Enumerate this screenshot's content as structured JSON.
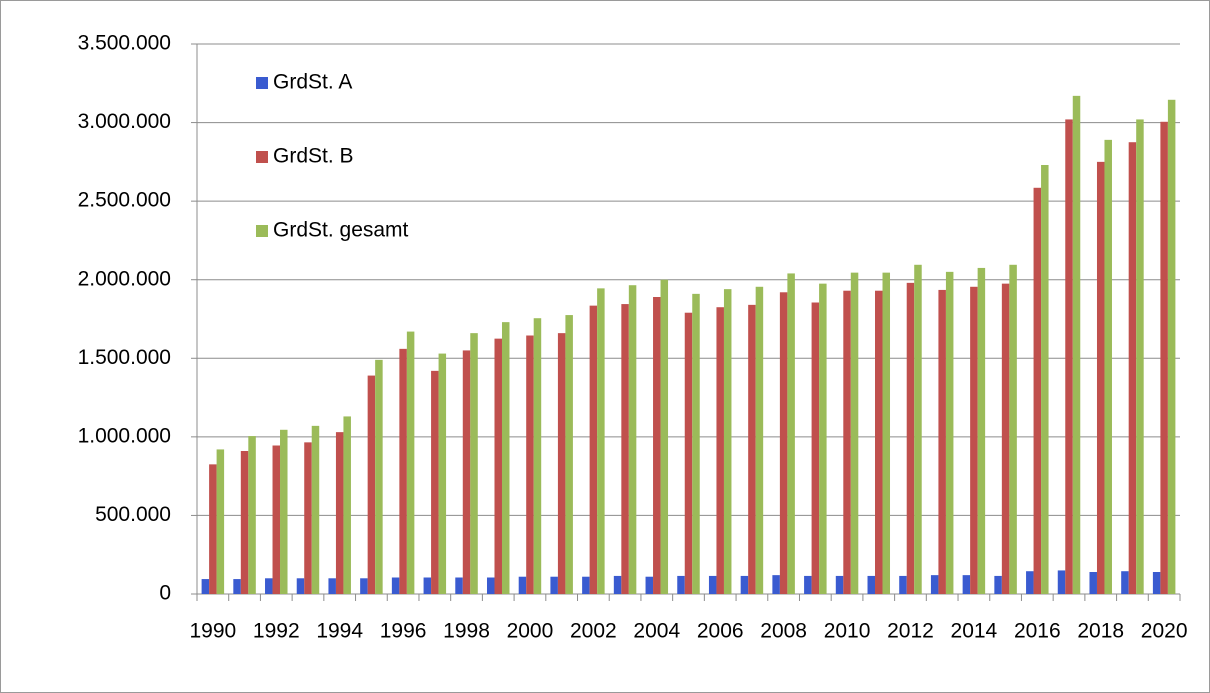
{
  "chart_data": {
    "type": "bar",
    "categories": [
      "1990",
      null,
      "1992",
      null,
      "1994",
      null,
      "1996",
      null,
      "1998",
      null,
      "2000",
      null,
      "2002",
      null,
      "2004",
      null,
      "2006",
      null,
      "2008",
      null,
      "2010",
      null,
      "2012",
      null,
      "2014",
      null,
      "2016",
      null,
      "2018",
      null,
      "2020"
    ],
    "series": [
      {
        "name": "GrdSt. A",
        "color": "#3a5bd0",
        "values": [
          95000,
          95000,
          100000,
          100000,
          100000,
          100000,
          105000,
          105000,
          105000,
          105000,
          110000,
          110000,
          110000,
          115000,
          110000,
          115000,
          115000,
          115000,
          120000,
          115000,
          115000,
          115000,
          115000,
          120000,
          120000,
          115000,
          145000,
          150000,
          140000,
          145000,
          140000
        ]
      },
      {
        "name": "GrdSt. B",
        "color": "#c0504d",
        "values": [
          825000,
          910000,
          945000,
          965000,
          1030000,
          1390000,
          1560000,
          1420000,
          1550000,
          1625000,
          1645000,
          1660000,
          1835000,
          1845000,
          1890000,
          1790000,
          1825000,
          1840000,
          1920000,
          1855000,
          1930000,
          1930000,
          1980000,
          1935000,
          1955000,
          1975000,
          2585000,
          3020000,
          2750000,
          2875000,
          3005000
        ]
      },
      {
        "name": "GrdSt. gesamt",
        "color": "#9bbb59",
        "values": [
          920000,
          1005000,
          1045000,
          1070000,
          1130000,
          1490000,
          1670000,
          1530000,
          1660000,
          1730000,
          1755000,
          1775000,
          1945000,
          1965000,
          2000000,
          1910000,
          1940000,
          1955000,
          2040000,
          1975000,
          2045000,
          2045000,
          2095000,
          2050000,
          2075000,
          2095000,
          2730000,
          3170000,
          2890000,
          3020000,
          3145000
        ]
      }
    ],
    "ylim": [
      0,
      3500000
    ],
    "yticks": [
      0,
      {
        "value": 500000,
        "label": "500.000"
      },
      {
        "value": 1000000,
        "label": "1.000.000"
      },
      {
        "value": 1500000,
        "label": "1.500.000"
      },
      {
        "value": 2000000,
        "label": "2.000.000"
      },
      {
        "value": 2500000,
        "label": "2.500.000"
      },
      {
        "value": 3000000,
        "label": "3.000.000"
      },
      {
        "value": 3500000,
        "label": "3.500.000"
      }
    ],
    "grid": true,
    "legend": "upper-left"
  }
}
